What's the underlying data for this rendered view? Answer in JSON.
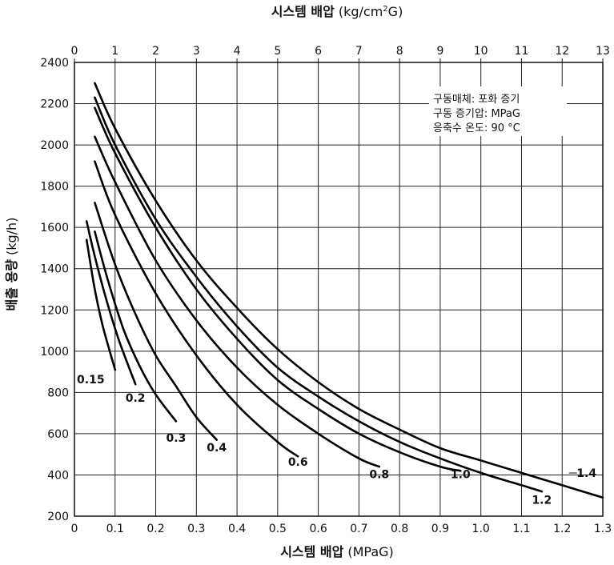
{
  "chart_data": {
    "type": "line",
    "xlabel_main": "시스템 배압",
    "xlabel_unit": "(MPaG)",
    "x2label_main": "시스템 배압",
    "x2label_unit_pre": "(kg/cm",
    "x2label_unit_sup": "2",
    "x2label_unit_post": "G)",
    "ylabel_main": "배출 용량",
    "ylabel_unit": "(kg/h)",
    "xlim": [
      0,
      1.3
    ],
    "ylim": [
      200,
      2400
    ],
    "x_ticks": [
      0,
      0.1,
      0.2,
      0.3,
      0.4,
      0.5,
      0.6,
      0.7,
      0.8,
      0.9,
      1.0,
      1.1,
      1.2,
      1.3
    ],
    "x_tick_labels": [
      "0",
      "0.1",
      "0.2",
      "0.3",
      "0.4",
      "0.5",
      "0.6",
      "0.7",
      "0.8",
      "0.9",
      "1.0",
      "1.1",
      "1.2",
      "1.3"
    ],
    "x2_ticks": [
      0,
      1,
      2,
      3,
      4,
      5,
      6,
      7,
      8,
      9,
      10,
      11,
      12,
      13
    ],
    "x2_tick_labels": [
      "0",
      "1",
      "2",
      "3",
      "4",
      "5",
      "6",
      "7",
      "8",
      "9",
      "10",
      "11",
      "12",
      "13"
    ],
    "y_ticks": [
      200,
      400,
      600,
      800,
      1000,
      1200,
      1400,
      1600,
      1800,
      2000,
      2200,
      2400
    ],
    "y_tick_labels": [
      "200",
      "400",
      "600",
      "800",
      "1000",
      "1200",
      "1400",
      "1600",
      "1800",
      "2000",
      "2200",
      "2400"
    ],
    "grid": true,
    "annotation_lines": [
      "구동매체: 포화 증기",
      "구동 증기압: MPaG",
      "응축수 온도: 90 °C"
    ],
    "series": [
      {
        "name": "0.15",
        "label_at": [
          0.04,
          845
        ],
        "points": [
          [
            0.03,
            1540
          ],
          [
            0.05,
            1300
          ],
          [
            0.07,
            1120
          ],
          [
            0.1,
            910
          ]
        ]
      },
      {
        "name": "0.2",
        "label_at": [
          0.15,
          755
        ],
        "points": [
          [
            0.03,
            1630
          ],
          [
            0.05,
            1460
          ],
          [
            0.08,
            1240
          ],
          [
            0.11,
            1050
          ],
          [
            0.15,
            840
          ]
        ]
      },
      {
        "name": "0.3",
        "label_at": [
          0.25,
          560
        ],
        "points": [
          [
            0.05,
            1580
          ],
          [
            0.08,
            1360
          ],
          [
            0.12,
            1110
          ],
          [
            0.16,
            930
          ],
          [
            0.2,
            790
          ],
          [
            0.25,
            660
          ]
        ]
      },
      {
        "name": "0.4",
        "label_at": [
          0.35,
          515
        ],
        "points": [
          [
            0.05,
            1720
          ],
          [
            0.1,
            1420
          ],
          [
            0.15,
            1180
          ],
          [
            0.2,
            980
          ],
          [
            0.25,
            830
          ],
          [
            0.3,
            680
          ],
          [
            0.35,
            570
          ]
        ]
      },
      {
        "name": "0.6",
        "label_at": [
          0.55,
          445
        ],
        "points": [
          [
            0.05,
            1920
          ],
          [
            0.1,
            1660
          ],
          [
            0.2,
            1280
          ],
          [
            0.3,
            980
          ],
          [
            0.4,
            740
          ],
          [
            0.5,
            560
          ],
          [
            0.55,
            490
          ]
        ]
      },
      {
        "name": "0.8",
        "label_at": [
          0.75,
          385
        ],
        "points": [
          [
            0.05,
            2040
          ],
          [
            0.1,
            1820
          ],
          [
            0.2,
            1440
          ],
          [
            0.3,
            1150
          ],
          [
            0.4,
            920
          ],
          [
            0.5,
            740
          ],
          [
            0.6,
            600
          ],
          [
            0.7,
            480
          ],
          [
            0.75,
            440
          ]
        ]
      },
      {
        "name": "1.0",
        "label_at": [
          0.95,
          385
        ],
        "points": [
          [
            0.05,
            2180
          ],
          [
            0.1,
            1960
          ],
          [
            0.2,
            1600
          ],
          [
            0.3,
            1300
          ],
          [
            0.4,
            1060
          ],
          [
            0.5,
            860
          ],
          [
            0.6,
            720
          ],
          [
            0.7,
            600
          ],
          [
            0.8,
            510
          ],
          [
            0.9,
            440
          ],
          [
            0.95,
            420
          ]
        ]
      },
      {
        "name": "1.2",
        "label_at": [
          1.15,
          260
        ],
        "points": [
          [
            0.05,
            2230
          ],
          [
            0.1,
            2000
          ],
          [
            0.2,
            1640
          ],
          [
            0.3,
            1360
          ],
          [
            0.4,
            1120
          ],
          [
            0.5,
            920
          ],
          [
            0.6,
            780
          ],
          [
            0.7,
            660
          ],
          [
            0.8,
            560
          ],
          [
            0.9,
            480
          ],
          [
            1.0,
            410
          ],
          [
            1.1,
            350
          ],
          [
            1.15,
            320
          ]
        ]
      },
      {
        "name": "1.4",
        "label_at": [
          1.26,
          390
        ],
        "points": [
          [
            0.05,
            2300
          ],
          [
            0.1,
            2080
          ],
          [
            0.2,
            1730
          ],
          [
            0.3,
            1440
          ],
          [
            0.4,
            1210
          ],
          [
            0.5,
            1010
          ],
          [
            0.6,
            850
          ],
          [
            0.7,
            720
          ],
          [
            0.8,
            620
          ],
          [
            0.9,
            530
          ],
          [
            1.0,
            470
          ],
          [
            1.1,
            410
          ],
          [
            1.2,
            350
          ],
          [
            1.3,
            290
          ]
        ]
      }
    ]
  }
}
